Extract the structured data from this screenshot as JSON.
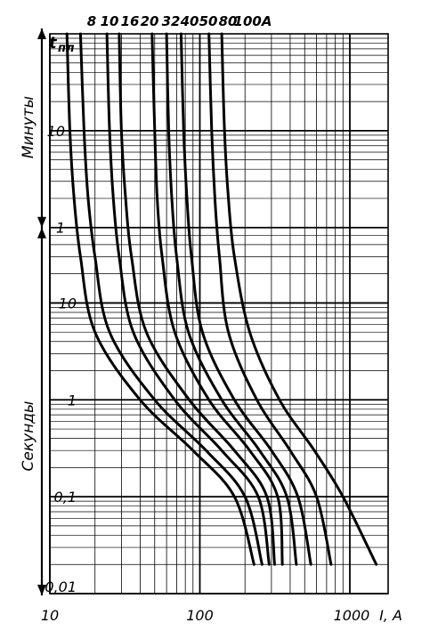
{
  "chart_data": {
    "type": "line",
    "title": "",
    "xlabel": "I, A",
    "ylabel": "t пл",
    "x_scale": "log",
    "y_scale": "log",
    "xlim": [
      10,
      1800
    ],
    "ylim_seconds": [
      0.01,
      6000
    ],
    "x_ticks": [
      "10",
      "100",
      "1000"
    ],
    "y_ticks_minutes": [
      "10",
      "1"
    ],
    "y_ticks_seconds": [
      "10",
      "1",
      "0,1",
      "0,01"
    ],
    "y_ax_title": "t",
    "y_ax_sub": "пл",
    "minutes_label": "Минуты",
    "seconds_label": "Секунды",
    "x_unit_label": "I, A",
    "x_last_tick": "1000",
    "grid": true,
    "legend": "curve labels along the top",
    "series": [
      {
        "name": "8",
        "points": [
          [
            13,
            6000
          ],
          [
            13.6,
            600
          ],
          [
            14.5,
            120
          ],
          [
            16,
            30
          ],
          [
            20,
            5
          ],
          [
            40,
            1
          ],
          [
            90,
            0.3
          ],
          [
            170,
            0.1
          ],
          [
            230,
            0.02
          ]
        ]
      },
      {
        "name": "10",
        "points": [
          [
            16,
            6000
          ],
          [
            16.9,
            600
          ],
          [
            18,
            120
          ],
          [
            20,
            30
          ],
          [
            25,
            5
          ],
          [
            50,
            1
          ],
          [
            110,
            0.3
          ],
          [
            200,
            0.1
          ],
          [
            260,
            0.02
          ]
        ]
      },
      {
        "name": "16",
        "points": [
          [
            24,
            6000
          ],
          [
            25,
            600
          ],
          [
            26.5,
            120
          ],
          [
            29,
            30
          ],
          [
            36,
            5
          ],
          [
            68,
            1
          ],
          [
            140,
            0.3
          ],
          [
            245,
            0.1
          ],
          [
            290,
            0.02
          ]
        ]
      },
      {
        "name": "20",
        "points": [
          [
            29,
            6000
          ],
          [
            30,
            600
          ],
          [
            32,
            120
          ],
          [
            35,
            30
          ],
          [
            44,
            5
          ],
          [
            85,
            1
          ],
          [
            170,
            0.3
          ],
          [
            280,
            0.1
          ],
          [
            315,
            0.02
          ]
        ]
      },
      {
        "name": "32",
        "points": [
          [
            48,
            6000
          ],
          [
            50,
            600
          ],
          [
            52,
            120
          ],
          [
            56,
            30
          ],
          [
            68,
            5
          ],
          [
            115,
            1
          ],
          [
            215,
            0.3
          ],
          [
            330,
            0.1
          ],
          [
            355,
            0.02
          ]
        ]
      },
      {
        "name": "40",
        "points": [
          [
            60,
            6000
          ],
          [
            62,
            600
          ],
          [
            65,
            120
          ],
          [
            70,
            30
          ],
          [
            84,
            5
          ],
          [
            140,
            1
          ],
          [
            250,
            0.3
          ],
          [
            380,
            0.1
          ],
          [
            440,
            0.02
          ]
        ]
      },
      {
        "name": "50",
        "points": [
          [
            75,
            6000
          ],
          [
            78,
            600
          ],
          [
            82,
            120
          ],
          [
            88,
            30
          ],
          [
            104,
            5
          ],
          [
            170,
            1
          ],
          [
            300,
            0.3
          ],
          [
            450,
            0.1
          ],
          [
            550,
            0.02
          ]
        ]
      },
      {
        "name": "80",
        "points": [
          [
            115,
            6000
          ],
          [
            120,
            600
          ],
          [
            126,
            120
          ],
          [
            135,
            30
          ],
          [
            155,
            5
          ],
          [
            240,
            1
          ],
          [
            400,
            0.3
          ],
          [
            600,
            0.1
          ],
          [
            750,
            0.02
          ]
        ]
      },
      {
        "name": "100A",
        "points": [
          [
            140,
            6000
          ],
          [
            146,
            600
          ],
          [
            155,
            120
          ],
          [
            170,
            30
          ],
          [
            215,
            5
          ],
          [
            340,
            1
          ],
          [
            580,
            0.3
          ],
          [
            900,
            0.1
          ],
          [
            1500,
            0.02
          ]
        ]
      }
    ]
  }
}
